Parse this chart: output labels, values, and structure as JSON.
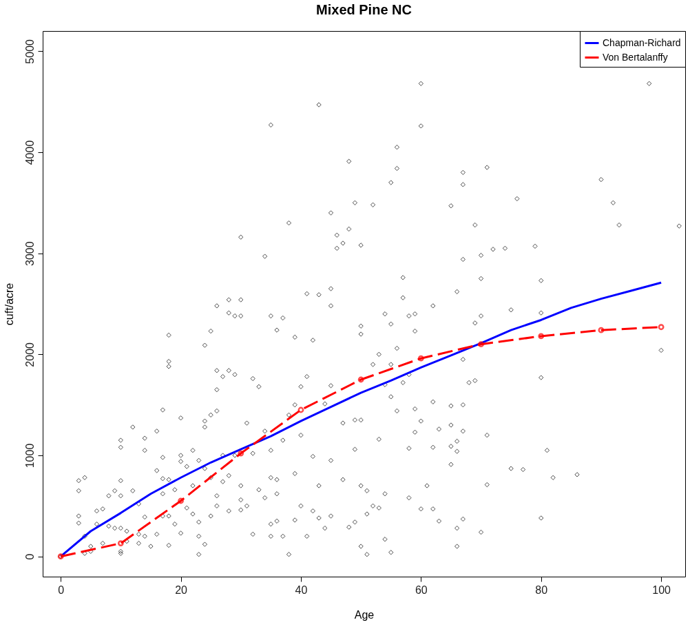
{
  "chart_data": {
    "type": "scatter",
    "title": "Mixed Pine NC",
    "xlabel": "Age",
    "ylabel": "cuft/acre",
    "xlim": [
      -3,
      104
    ],
    "ylim": [
      -200,
      5200
    ],
    "xticks": [
      0,
      20,
      40,
      60,
      80,
      100
    ],
    "yticks": [
      0,
      1000,
      2000,
      3000,
      4000,
      5000
    ],
    "grid": false,
    "legend": "top right",
    "series": [
      {
        "color": "#000000",
        "marker": "diamond",
        "x": [
          0,
          3,
          3,
          3,
          3,
          4,
          4,
          4,
          5,
          5,
          6,
          6,
          7,
          7,
          8,
          8,
          9,
          9,
          10,
          10,
          10,
          10,
          10,
          10,
          10,
          11,
          11,
          12,
          12,
          13,
          13,
          13,
          14,
          14,
          14,
          14,
          15,
          16,
          16,
          16,
          17,
          17,
          17,
          17,
          17,
          18,
          18,
          18,
          18,
          18,
          18,
          19,
          19,
          20,
          20,
          20,
          20,
          21,
          21,
          22,
          22,
          22,
          23,
          23,
          23,
          23,
          24,
          24,
          24,
          24,
          24,
          25,
          25,
          25,
          25,
          26,
          26,
          26,
          26,
          26,
          26,
          27,
          27,
          27,
          28,
          28,
          28,
          28,
          28,
          29,
          29,
          29,
          30,
          30,
          30,
          30,
          30,
          30,
          31,
          31,
          32,
          32,
          32,
          33,
          33,
          34,
          34,
          34,
          35,
          35,
          35,
          35,
          35,
          35,
          36,
          36,
          36,
          36,
          37,
          37,
          37,
          38,
          38,
          38,
          39,
          39,
          39,
          39,
          40,
          40,
          40,
          41,
          41,
          41,
          42,
          42,
          42,
          43,
          43,
          43,
          43,
          44,
          44,
          45,
          45,
          45,
          45,
          45,
          45,
          46,
          46,
          47,
          47,
          47,
          48,
          48,
          48,
          49,
          49,
          49,
          49,
          50,
          50,
          50,
          50,
          50,
          50,
          51,
          51,
          51,
          52,
          52,
          52,
          53,
          53,
          53,
          54,
          54,
          54,
          54,
          55,
          55,
          55,
          55,
          55,
          56,
          56,
          56,
          56,
          57,
          57,
          57,
          58,
          58,
          58,
          58,
          59,
          59,
          59,
          59,
          60,
          60,
          60,
          60,
          61,
          62,
          62,
          62,
          62,
          63,
          63,
          65,
          65,
          65,
          65,
          65,
          66,
          66,
          66,
          66,
          66,
          67,
          67,
          67,
          67,
          67,
          67,
          67,
          68,
          69,
          69,
          69,
          70,
          70,
          70,
          70,
          71,
          71,
          71,
          72,
          74,
          75,
          75,
          76,
          77,
          79,
          80,
          80,
          80,
          80,
          81,
          82,
          86,
          90,
          92,
          93,
          98,
          100,
          103
        ],
        "values": [
          0,
          750,
          650,
          400,
          330,
          780,
          200,
          30,
          100,
          50,
          450,
          320,
          470,
          130,
          600,
          300,
          650,
          280,
          1150,
          1080,
          750,
          600,
          30,
          50,
          280,
          150,
          250,
          1280,
          650,
          520,
          220,
          130,
          1170,
          1050,
          390,
          200,
          100,
          1240,
          850,
          220,
          1450,
          980,
          770,
          620,
          400,
          2190,
          1930,
          1880,
          760,
          400,
          110,
          660,
          320,
          1370,
          1000,
          940,
          230,
          890,
          480,
          1050,
          700,
          420,
          950,
          340,
          200,
          20,
          2090,
          1340,
          1280,
          870,
          120,
          2230,
          1400,
          780,
          400,
          2480,
          1840,
          1440,
          1650,
          600,
          500,
          1780,
          1000,
          740,
          2540,
          2410,
          1840,
          800,
          450,
          2380,
          1800,
          1000,
          3160,
          2540,
          2380,
          700,
          560,
          460,
          1320,
          500,
          1760,
          1020,
          220,
          1680,
          660,
          2970,
          1240,
          580,
          4270,
          2380,
          1050,
          780,
          320,
          200,
          2240,
          760,
          620,
          350,
          2360,
          1150,
          200,
          3300,
          1400,
          20,
          2170,
          1500,
          820,
          360,
          1680,
          1200,
          500,
          2600,
          1780,
          200,
          2140,
          990,
          450,
          4470,
          2590,
          700,
          380,
          1510,
          280,
          3400,
          2650,
          2480,
          1690,
          950,
          400,
          3180,
          3050,
          3100,
          1320,
          760,
          3910,
          3240,
          290,
          3500,
          1350,
          1060,
          340,
          3080,
          2280,
          2200,
          1350,
          700,
          100,
          650,
          420,
          20,
          3480,
          1900,
          500,
          2000,
          1160,
          480,
          2400,
          1700,
          620,
          170,
          3700,
          2300,
          1900,
          1580,
          40,
          4050,
          3840,
          2060,
          1440,
          2760,
          2560,
          1720,
          2380,
          1800,
          1070,
          580,
          2400,
          2230,
          1460,
          1230,
          4680,
          4260,
          1340,
          470,
          700,
          2480,
          1530,
          1080,
          470,
          1260,
          350,
          3470,
          1490,
          1300,
          1090,
          910,
          2620,
          1140,
          1040,
          280,
          100,
          3800,
          3680,
          2940,
          1950,
          1500,
          1240,
          370,
          1720,
          3280,
          2310,
          1740,
          2980,
          2750,
          2380,
          240,
          3850,
          1200,
          710,
          3040,
          3050,
          2440,
          870,
          3540,
          860,
          3070,
          2730,
          2410,
          1770,
          380,
          1050,
          780,
          810,
          3730,
          3500,
          3280,
          4680,
          2040,
          3270
        ]
      },
      {
        "type": "line",
        "name": "Chapman-Richard",
        "color": "#0000ff",
        "marker": "none",
        "line_style": "solid",
        "x": [
          0,
          5,
          10,
          15,
          20,
          25,
          30,
          35,
          40,
          45,
          50,
          55,
          60,
          65,
          70,
          75,
          80,
          85,
          90,
          95,
          100
        ],
        "values": [
          0,
          250,
          430,
          620,
          780,
          930,
          1060,
          1190,
          1340,
          1480,
          1620,
          1740,
          1870,
          1990,
          2110,
          2240,
          2340,
          2460,
          2550,
          2630,
          2710
        ]
      },
      {
        "type": "line",
        "name": "Von Bertalanffy",
        "color": "#ff0000",
        "marker": "circle",
        "line_style": "dashed",
        "x": [
          0,
          10,
          20,
          30,
          40,
          50,
          60,
          70,
          80,
          90,
          100
        ],
        "values": [
          0,
          130,
          550,
          1020,
          1450,
          1750,
          1960,
          2100,
          2180,
          2240,
          2270
        ]
      }
    ]
  }
}
